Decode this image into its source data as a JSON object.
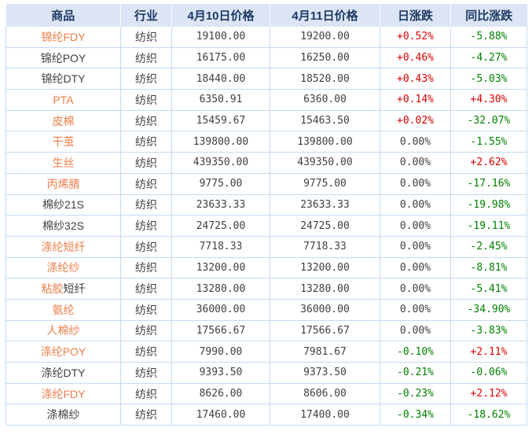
{
  "table": {
    "columns": [
      "商品",
      "行业",
      "4月10日价格",
      "4月11日价格",
      "日涨跌",
      "同比涨跌"
    ],
    "rows": [
      {
        "name": [
          {
            "text": "锦纶FDY",
            "link": true
          }
        ],
        "industry": "纺织",
        "price_apr10": "19100.00",
        "price_apr11": "19200.00",
        "daily_change": "+0.52%",
        "yoy_change": "-5.88%"
      },
      {
        "name": [
          {
            "text": "锦纶POY",
            "link": false
          }
        ],
        "industry": "纺织",
        "price_apr10": "16175.00",
        "price_apr11": "16250.00",
        "daily_change": "+0.46%",
        "yoy_change": "-4.27%"
      },
      {
        "name": [
          {
            "text": "锦纶DTY",
            "link": false
          }
        ],
        "industry": "纺织",
        "price_apr10": "18440.00",
        "price_apr11": "18520.00",
        "daily_change": "+0.43%",
        "yoy_change": "-5.03%"
      },
      {
        "name": [
          {
            "text": "PTA",
            "link": true
          }
        ],
        "industry": "纺织",
        "price_apr10": "6350.91",
        "price_apr11": "6360.00",
        "daily_change": "+0.14%",
        "yoy_change": "+4.30%"
      },
      {
        "name": [
          {
            "text": "皮棉",
            "link": true
          }
        ],
        "industry": "纺织",
        "price_apr10": "15459.67",
        "price_apr11": "15463.50",
        "daily_change": "+0.02%",
        "yoy_change": "-32.07%"
      },
      {
        "name": [
          {
            "text": "干茧",
            "link": true
          }
        ],
        "industry": "纺织",
        "price_apr10": "139800.00",
        "price_apr11": "139800.00",
        "daily_change": "0.00%",
        "yoy_change": "-1.55%"
      },
      {
        "name": [
          {
            "text": "生丝",
            "link": true
          }
        ],
        "industry": "纺织",
        "price_apr10": "439350.00",
        "price_apr11": "439350.00",
        "daily_change": "0.00%",
        "yoy_change": "+2.62%"
      },
      {
        "name": [
          {
            "text": "丙烯腈",
            "link": true
          }
        ],
        "industry": "纺织",
        "price_apr10": "9775.00",
        "price_apr11": "9775.00",
        "daily_change": "0.00%",
        "yoy_change": "-17.16%"
      },
      {
        "name": [
          {
            "text": "棉纱21S",
            "link": false
          }
        ],
        "industry": "纺织",
        "price_apr10": "23633.33",
        "price_apr11": "23633.33",
        "daily_change": "0.00%",
        "yoy_change": "-19.98%"
      },
      {
        "name": [
          {
            "text": "棉纱32S",
            "link": false
          }
        ],
        "industry": "纺织",
        "price_apr10": "24725.00",
        "price_apr11": "24725.00",
        "daily_change": "0.00%",
        "yoy_change": "-19.11%"
      },
      {
        "name": [
          {
            "text": "涤纶短纤",
            "link": true
          }
        ],
        "industry": "纺织",
        "price_apr10": "7718.33",
        "price_apr11": "7718.33",
        "daily_change": "0.00%",
        "yoy_change": "-2.45%"
      },
      {
        "name": [
          {
            "text": "涤纶纱",
            "link": true
          }
        ],
        "industry": "纺织",
        "price_apr10": "13200.00",
        "price_apr11": "13200.00",
        "daily_change": "0.00%",
        "yoy_change": "-8.81%"
      },
      {
        "name": [
          {
            "text": "粘胶",
            "link": true
          },
          {
            "text": "短纤",
            "link": false
          }
        ],
        "industry": "纺织",
        "price_apr10": "13280.00",
        "price_apr11": "13280.00",
        "daily_change": "0.00%",
        "yoy_change": "-5.41%"
      },
      {
        "name": [
          {
            "text": "氨纶",
            "link": true
          }
        ],
        "industry": "纺织",
        "price_apr10": "36000.00",
        "price_apr11": "36000.00",
        "daily_change": "0.00%",
        "yoy_change": "-34.90%"
      },
      {
        "name": [
          {
            "text": "人棉纱",
            "link": true
          }
        ],
        "industry": "纺织",
        "price_apr10": "17566.67",
        "price_apr11": "17566.67",
        "daily_change": "0.00%",
        "yoy_change": "-3.83%"
      },
      {
        "name": [
          {
            "text": "涤纶POY",
            "link": true
          }
        ],
        "industry": "纺织",
        "price_apr10": "7990.00",
        "price_apr11": "7981.67",
        "daily_change": "-0.10%",
        "yoy_change": "+2.11%"
      },
      {
        "name": [
          {
            "text": "涤纶DTY",
            "link": false
          }
        ],
        "industry": "纺织",
        "price_apr10": "9393.50",
        "price_apr11": "9373.50",
        "daily_change": "-0.21%",
        "yoy_change": "-0.06%"
      },
      {
        "name": [
          {
            "text": "涤纶FDY",
            "link": true
          }
        ],
        "industry": "纺织",
        "price_apr10": "8626.00",
        "price_apr11": "8606.00",
        "daily_change": "-0.23%",
        "yoy_change": "+2.12%"
      },
      {
        "name": [
          {
            "text": "涤棉纱",
            "link": false
          }
        ],
        "industry": "纺织",
        "price_apr10": "17460.00",
        "price_apr11": "17400.00",
        "daily_change": "-0.34%",
        "yoy_change": "-18.62%"
      }
    ]
  },
  "colors": {
    "header_bg": "#dbe5f5",
    "header_text": "#1f3864",
    "body_text": "#404040",
    "link_orange": "#ed7d49",
    "up_red": "#dc0000",
    "down_green": "#008000",
    "border_blue": "#c5d9f1"
  }
}
